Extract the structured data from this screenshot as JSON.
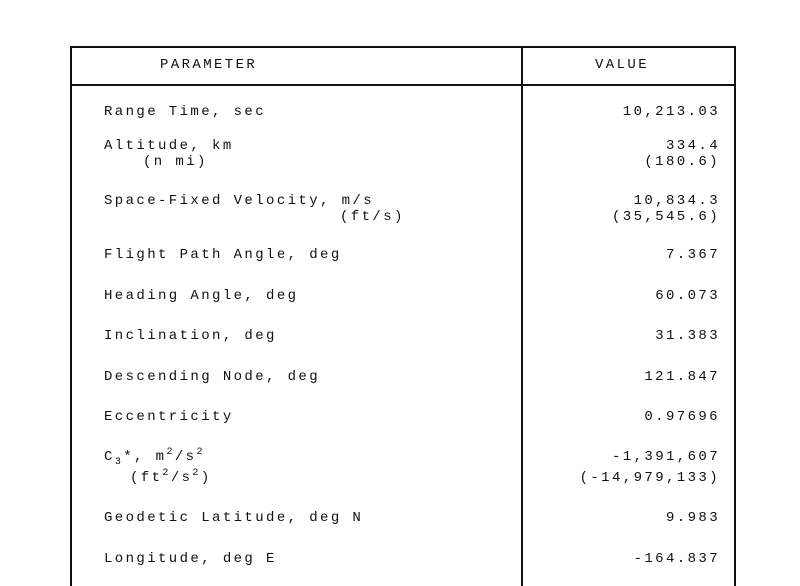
{
  "table": {
    "headers": {
      "parameter": "PARAMETER",
      "value": "VALUE"
    },
    "rows": [
      {
        "parameter": "Range Time, sec",
        "value": "10,213.03"
      },
      {
        "parameter": "Altitude, km",
        "parameter_sub": "(n mi)",
        "value": "334.4",
        "value_sub": "(180.6)"
      },
      {
        "parameter": "Space-Fixed Velocity, m/s",
        "parameter_sub": "(ft/s)",
        "value": "10,834.3",
        "value_sub": "(35,545.6)"
      },
      {
        "parameter": "Flight Path Angle, deg",
        "value": "7.367"
      },
      {
        "parameter": "Heading Angle, deg",
        "value": "60.073"
      },
      {
        "parameter": "Inclination, deg",
        "value": "31.383"
      },
      {
        "parameter": "Descending Node, deg",
        "value": "121.847"
      },
      {
        "parameter": "Eccentricity",
        "value": "0.97696"
      },
      {
        "parameter_parts": {
          "c": "C",
          "sub3": "3",
          "rest": "*, m",
          "sup1": "2",
          "mid": "/s",
          "sup2": "2"
        },
        "parameter_sub_parts": {
          "open": "(ft",
          "sup1": "2",
          "mid": "/s",
          "sup2": "2",
          "close": ")"
        },
        "value": "-1,391,607",
        "value_sub": "(-14,979,133)"
      },
      {
        "parameter": "Geodetic Latitude, deg N",
        "value": "9.983"
      },
      {
        "parameter": "Longitude, deg E",
        "value": "-164.837"
      }
    ]
  }
}
